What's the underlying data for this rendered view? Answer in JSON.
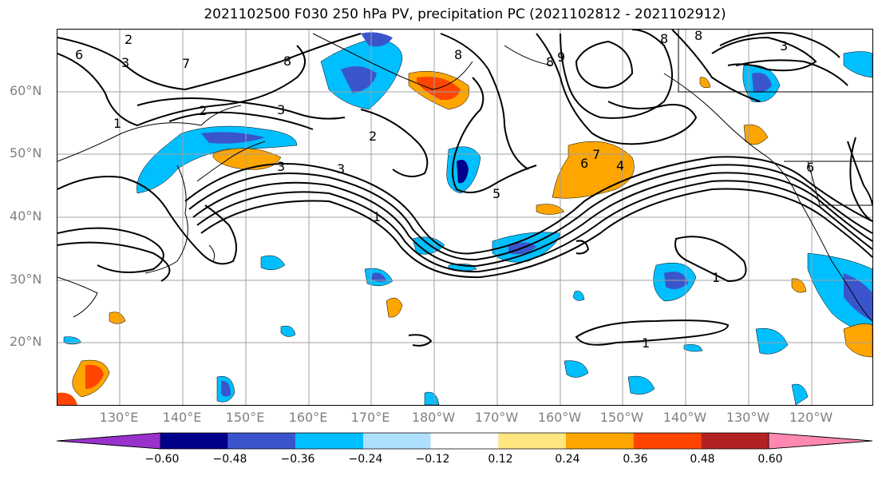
{
  "title": "2021102500 F030 250 hPa PV, precipitation PC (2021102812 - 2021102912)",
  "lat_labels": [
    "60°N",
    "50°N",
    "40°N",
    "30°N",
    "20°N"
  ],
  "lon_labels": [
    "130°E",
    "140°E",
    "150°E",
    "160°E",
    "170°E",
    "180°W",
    "170°W",
    "160°W",
    "150°W",
    "140°W",
    "130°W",
    "120°W"
  ],
  "colorbar": {
    "ticks": [
      "−0.60",
      "−0.48",
      "−0.36",
      "−0.24",
      "−0.12",
      "0.12",
      "0.24",
      "0.36",
      "0.48",
      "0.60"
    ],
    "colors": [
      "#9932cc",
      "#00008b",
      "#3a55cc",
      "#00bfff",
      "#b0e0ff",
      "#ffffff",
      "#ffe680",
      "#ffa500",
      "#ff4500",
      "#b22222",
      "#ff88b0"
    ]
  },
  "contour_labels": [
    "2",
    "3",
    "6",
    "8",
    "1",
    "7",
    "8",
    "3",
    "2",
    "3",
    "8",
    "3",
    "8",
    "2",
    "3",
    "1",
    "5",
    "6",
    "7",
    "4",
    "9",
    "6",
    "8",
    "1",
    "1"
  ]
}
